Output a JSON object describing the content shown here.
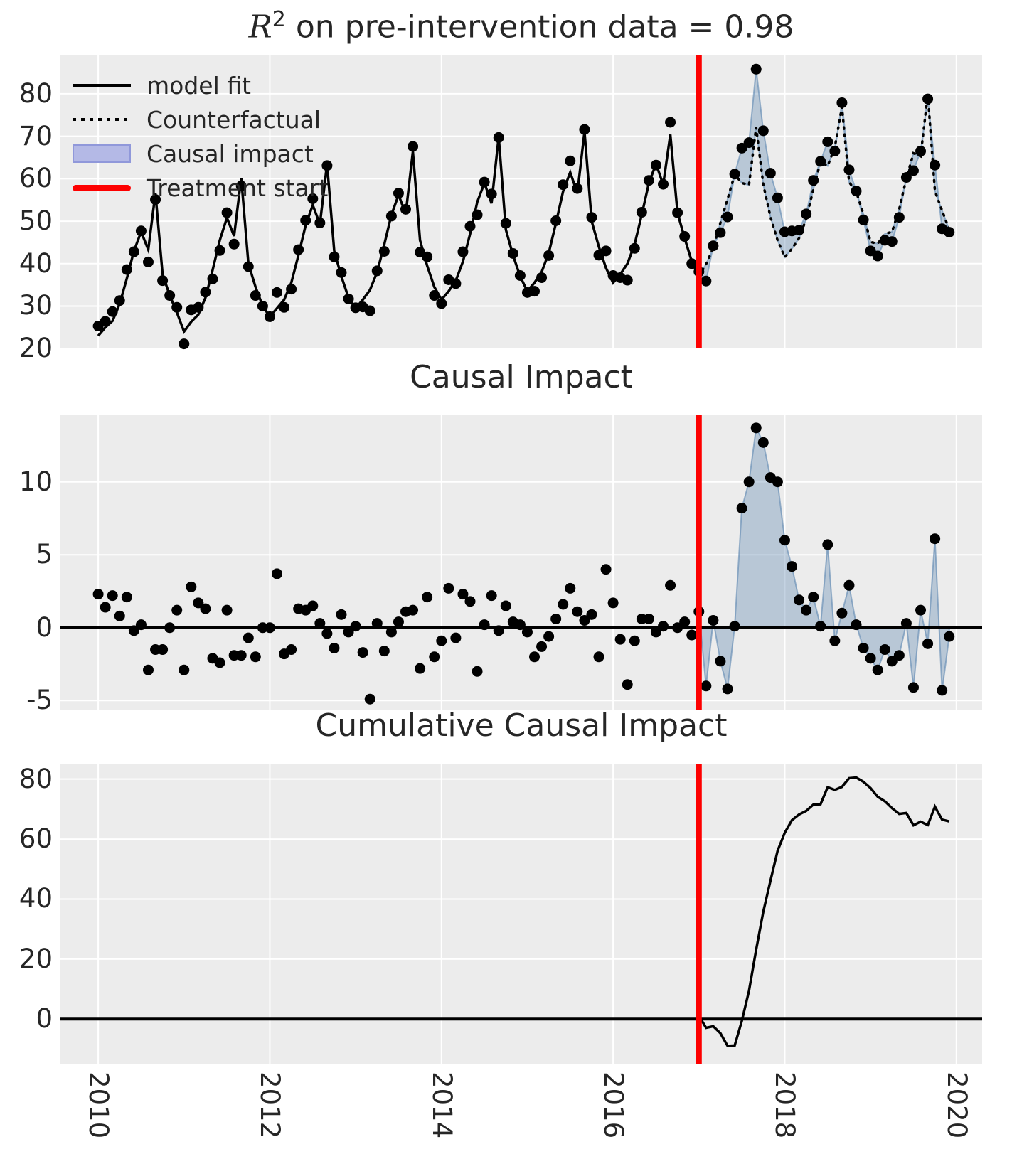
{
  "figure": {
    "title_top": {
      "r": "R",
      "sup": "2",
      "rest": " on pre-intervention data = 0.98",
      "text": "R2 on pre-intervention data = 0.98"
    },
    "title_middle": "Causal Impact",
    "title_bottom": "Cumulative Causal Impact"
  },
  "legend": {
    "position": "upper left",
    "items": [
      {
        "label": "model fit",
        "type": "line-solid",
        "color": "#000000"
      },
      {
        "label": "Counterfactual",
        "type": "line-dotted",
        "color": "#000000"
      },
      {
        "label": "Causal impact",
        "type": "patch",
        "color": "#b4b9e6"
      },
      {
        "label": "Treatment start",
        "type": "line-solid",
        "color": "#fd0000"
      }
    ]
  },
  "colors": {
    "plot_background": "#ececec",
    "grid": "#ffffff",
    "series": "#000000",
    "treatment_line": "#fd0000",
    "impact_fill": "rgba(100,140,180,0.38)",
    "impact_edge": "rgba(100,140,180,0.65)",
    "zero_line": "#000000",
    "text": "#262626"
  },
  "chart_data": [
    {
      "type": "line",
      "panel": "top",
      "title": "R2 on pre-intervention data = 0.98",
      "x_start": 2010.0,
      "x_step": 0.0833333,
      "n_points": 120,
      "treatment_x": 2017.0,
      "treatment_index": 84,
      "xlim": [
        2009.56,
        2020.3
      ],
      "ylim": [
        20.2,
        89.2
      ],
      "xticks": [
        2010,
        2012,
        2014,
        2016,
        2018,
        2020
      ],
      "yticks": [
        20,
        30,
        40,
        50,
        60,
        70,
        80
      ],
      "grid": true,
      "series": [
        {
          "name": "observed_scatter",
          "style": "dots",
          "values": [
            25.3,
            26.4,
            28.7,
            31.3,
            38.6,
            42.8,
            47.7,
            40.4,
            55.1,
            36.0,
            32.5,
            29.7,
            21.1,
            29.1,
            29.7,
            33.3,
            36.4,
            43.1,
            52.0,
            44.6,
            58.3,
            39.3,
            32.5,
            30.0,
            27.5,
            33.2,
            29.7,
            34.0,
            43.3,
            50.2,
            55.3,
            49.6,
            63.1,
            41.6,
            37.9,
            31.7,
            29.6,
            29.8,
            28.9,
            38.3,
            42.9,
            51.2,
            56.6,
            52.8,
            67.6,
            42.7,
            41.6,
            32.5,
            30.6,
            36.2,
            35.3,
            42.8,
            48.8,
            51.5,
            59.2,
            56.4,
            69.7,
            49.5,
            42.4,
            37.2,
            33.2,
            33.5,
            36.7,
            41.9,
            50.1,
            58.6,
            64.2,
            57.7,
            71.6,
            50.9,
            42.0,
            43.0,
            37.2,
            36.7,
            36.1,
            43.6,
            52.1,
            59.6,
            63.2,
            58.7,
            73.3,
            52.0,
            46.4,
            40.0,
            38.1,
            35.9,
            44.2,
            47.3,
            51.0,
            61.1,
            67.2,
            68.5,
            85.8,
            71.3,
            61.3,
            55.5,
            47.5,
            47.7,
            47.9,
            51.7,
            59.6,
            64.1,
            68.7,
            66.5,
            77.9,
            62.1,
            57.1,
            50.3,
            43.0,
            41.8,
            45.5,
            45.2,
            50.9,
            60.3,
            61.9,
            66.5,
            78.8,
            63.2,
            48.2,
            47.4
          ]
        },
        {
          "name": "model_fit_and_counterfactual",
          "style": "solid-pre-dotted-post",
          "values": [
            23.0,
            25.0,
            26.5,
            30.5,
            36.5,
            43.0,
            47.5,
            43.3,
            56.6,
            37.5,
            32.5,
            28.5,
            24.0,
            26.3,
            28.0,
            32.0,
            38.5,
            45.5,
            50.8,
            46.5,
            60.2,
            40.0,
            34.5,
            30.0,
            27.5,
            29.5,
            31.5,
            35.5,
            42.0,
            49.0,
            53.8,
            49.3,
            63.5,
            43.0,
            37.0,
            32.0,
            29.5,
            31.5,
            33.8,
            38.0,
            44.5,
            51.5,
            56.2,
            51.7,
            66.4,
            45.5,
            39.5,
            34.5,
            31.5,
            33.5,
            36.0,
            40.5,
            47.0,
            54.5,
            59.0,
            54.2,
            69.9,
            48.0,
            42.0,
            37.0,
            33.5,
            35.5,
            38.0,
            42.5,
            49.5,
            57.0,
            61.5,
            56.6,
            71.1,
            50.0,
            44.0,
            39.0,
            35.5,
            37.5,
            40.0,
            44.5,
            51.5,
            59.0,
            63.5,
            58.6,
            70.4,
            52.0,
            46.0,
            40.5,
            37.0,
            39.9,
            43.7,
            49.6,
            55.2,
            61.0,
            59.0,
            58.5,
            72.1,
            58.6,
            51.0,
            45.5,
            41.5,
            43.5,
            46.0,
            50.5,
            57.5,
            64.0,
            63.0,
            67.4,
            76.9,
            59.2,
            56.9,
            51.7,
            45.1,
            44.7,
            47.0,
            47.5,
            52.8,
            60.0,
            66.0,
            65.3,
            79.9,
            57.1,
            52.5,
            48.0
          ]
        }
      ],
      "fill_between": {
        "from": "model_fit_and_counterfactual",
        "to": "observed_scatter",
        "start_index": 84
      }
    },
    {
      "type": "scatter",
      "panel": "middle",
      "title": "Causal Impact",
      "x_start": 2010.0,
      "x_step": 0.0833333,
      "n_points": 120,
      "treatment_x": 2017.0,
      "treatment_index": 84,
      "xlim": [
        2009.56,
        2020.3
      ],
      "ylim": [
        -5.62,
        14.62
      ],
      "yticks": [
        -5,
        0,
        5,
        10
      ],
      "grid": true,
      "zero_line": true,
      "values": [
        2.3,
        1.4,
        2.2,
        0.8,
        2.1,
        -0.2,
        0.2,
        -2.9,
        -1.5,
        -1.5,
        0.0,
        1.2,
        -2.9,
        2.8,
        1.7,
        1.3,
        -2.1,
        -2.4,
        1.2,
        -1.9,
        -1.9,
        -0.7,
        -2.0,
        0.0,
        0.0,
        3.7,
        -1.8,
        -1.5,
        1.3,
        1.2,
        1.5,
        0.3,
        -0.4,
        -1.4,
        0.9,
        -0.3,
        0.1,
        -1.7,
        -4.9,
        0.3,
        -1.6,
        -0.3,
        0.4,
        1.1,
        1.2,
        -2.8,
        2.1,
        -2.0,
        -0.9,
        2.7,
        -0.7,
        2.3,
        1.8,
        -3.0,
        0.2,
        2.2,
        -0.2,
        1.5,
        0.4,
        0.2,
        -0.3,
        -2.0,
        -1.3,
        -0.6,
        0.6,
        1.6,
        2.7,
        1.1,
        0.5,
        0.9,
        -2.0,
        4.0,
        1.7,
        -0.8,
        -3.9,
        -0.9,
        0.6,
        0.6,
        -0.3,
        0.1,
        2.9,
        0.0,
        0.4,
        -0.5,
        1.1,
        -4.0,
        0.5,
        -2.3,
        -4.2,
        0.1,
        8.2,
        10.0,
        13.7,
        12.7,
        10.3,
        10.0,
        6.0,
        4.2,
        1.9,
        1.2,
        2.1,
        0.1,
        5.7,
        -0.9,
        1.0,
        2.9,
        0.2,
        -1.4,
        -2.1,
        -2.9,
        -1.5,
        -2.3,
        -1.9,
        0.3,
        -4.1,
        1.2,
        -1.1,
        6.1,
        -4.3,
        -0.6
      ],
      "fill_to_zero_start_index": 84
    },
    {
      "type": "line",
      "panel": "bottom",
      "title": "Cumulative Causal Impact",
      "x_start": 2017.0,
      "x_step": 0.0833333,
      "n_points": 36,
      "treatment_x": 2017.0,
      "xlim": [
        2009.56,
        2020.3
      ],
      "ylim": [
        -15.1,
        84.9
      ],
      "xticks": [
        2010,
        2012,
        2014,
        2016,
        2018,
        2020
      ],
      "yticks": [
        0,
        20,
        40,
        60,
        80
      ],
      "grid": true,
      "zero_line": true,
      "values": [
        1.1,
        -2.9,
        -2.4,
        -4.7,
        -8.9,
        -8.8,
        -0.6,
        9.4,
        23.1,
        35.8,
        46.1,
        56.1,
        62.1,
        66.3,
        68.2,
        69.4,
        71.5,
        71.6,
        77.3,
        76.4,
        77.4,
        80.3,
        80.5,
        79.1,
        77.0,
        74.1,
        72.6,
        70.3,
        68.4,
        68.7,
        64.6,
        65.8,
        64.7,
        70.8,
        66.5,
        65.9
      ]
    }
  ],
  "x_axis": {
    "tick_labels": [
      "2010",
      "2012",
      "2014",
      "2016",
      "2018",
      "2020"
    ],
    "rotation": 90
  }
}
